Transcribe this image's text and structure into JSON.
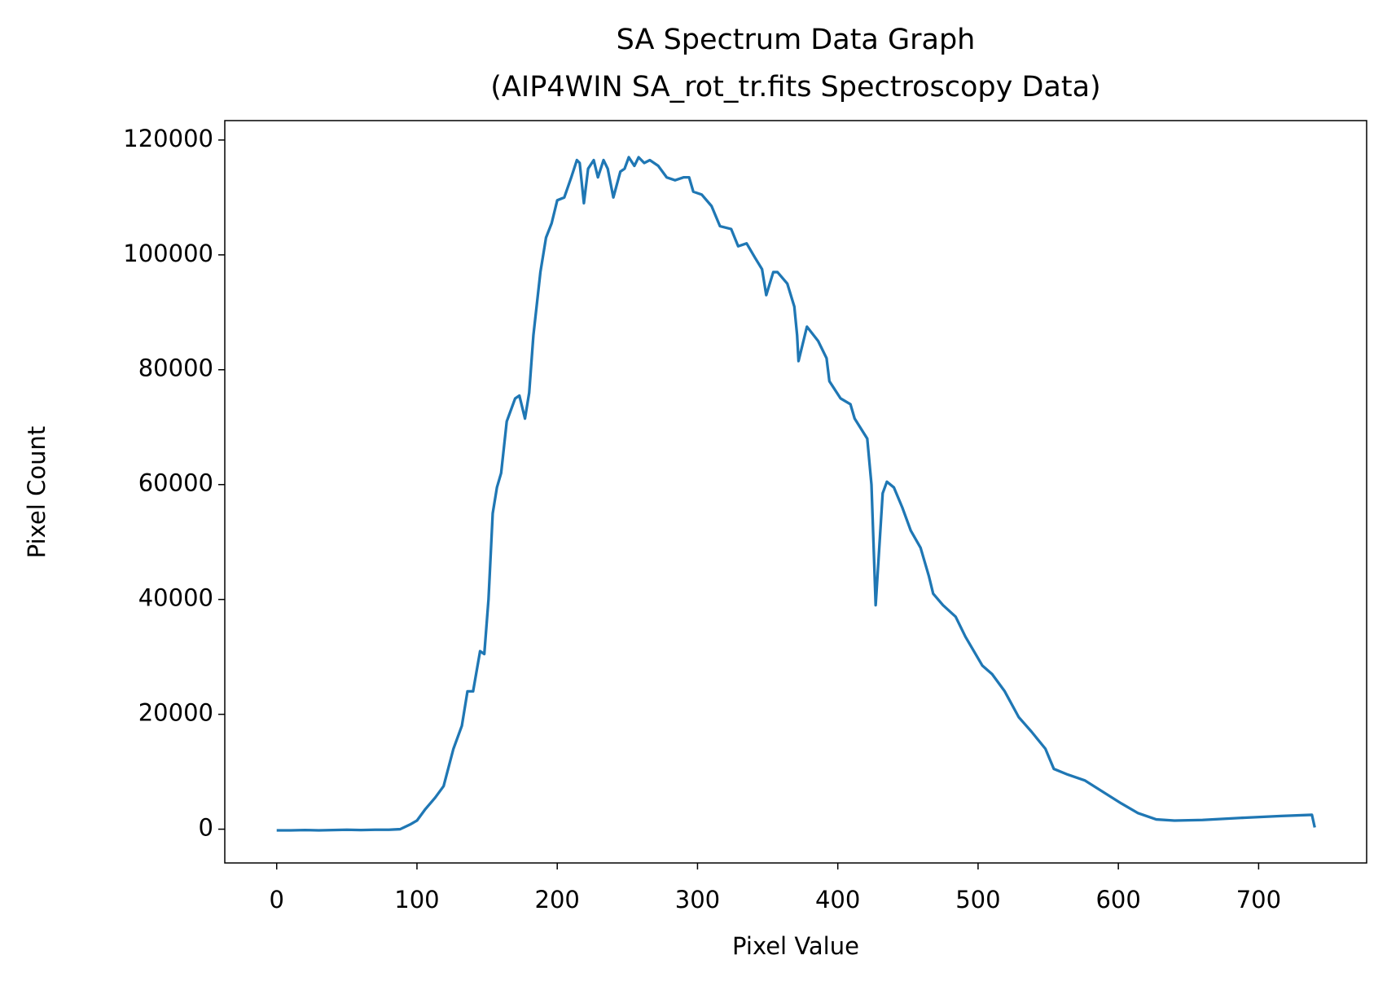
{
  "chart_data": {
    "type": "line",
    "title": "SA Spectrum Data Graph",
    "subtitle": "(AIP4WIN SA_rot_tr.fits Spectroscopy Data)",
    "x_label": "Pixel Value",
    "y_label": "Pixel Count",
    "x": [
      0,
      10,
      20,
      30,
      40,
      50,
      60,
      70,
      80,
      88,
      95,
      100,
      106,
      113,
      119,
      126,
      132,
      136,
      140,
      145,
      148,
      151,
      154,
      157,
      160,
      164,
      170,
      173,
      177,
      180,
      183,
      188,
      192,
      196,
      200,
      205,
      210,
      214,
      216,
      219,
      222,
      226,
      229,
      233,
      236,
      240,
      245,
      248,
      251,
      255,
      258,
      262,
      266,
      272,
      278,
      284,
      290,
      294,
      297,
      303,
      310,
      316,
      324,
      329,
      335,
      341,
      346,
      349,
      354,
      357,
      364,
      369,
      371,
      372,
      378,
      386,
      392,
      394,
      402,
      409,
      412,
      421,
      424,
      427,
      432,
      435,
      440,
      446,
      452,
      459,
      465,
      468,
      475,
      484,
      491,
      497,
      503,
      510,
      519,
      529,
      538,
      548,
      554,
      564,
      576,
      589,
      602,
      614,
      627,
      640,
      660,
      690,
      716,
      738,
      740
    ],
    "series": [
      {
        "name": "SA spectrum",
        "color": "#1f77b4",
        "values": [
          -200,
          -200,
          -150,
          -200,
          -150,
          -100,
          -150,
          -100,
          -100,
          0,
          800,
          1500,
          3500,
          5500,
          7500,
          14000,
          18000,
          24000,
          24000,
          31000,
          30500,
          40000,
          55000,
          59500,
          62000,
          71000,
          75000,
          75500,
          71500,
          76000,
          86000,
          97000,
          103000,
          105500,
          109500,
          110000,
          113500,
          116500,
          116000,
          109000,
          115000,
          116500,
          113500,
          116500,
          115000,
          110000,
          114500,
          115000,
          117000,
          115500,
          117000,
          116000,
          116500,
          115500,
          113500,
          113000,
          113500,
          113500,
          111000,
          110500,
          108500,
          105000,
          104500,
          101500,
          102000,
          99500,
          97500,
          93000,
          97000,
          97000,
          95000,
          91000,
          86000,
          81500,
          87500,
          85000,
          82000,
          78000,
          75000,
          74000,
          71500,
          68000,
          60000,
          39000,
          58500,
          60500,
          59500,
          56000,
          52000,
          49000,
          44000,
          41000,
          39000,
          37000,
          33500,
          31000,
          28500,
          27000,
          24000,
          19500,
          17000,
          14000,
          10500,
          9500,
          8500,
          6500,
          4500,
          2800,
          1700,
          1500,
          1600,
          2000,
          2300,
          2500,
          300
        ]
      }
    ],
    "xlim": [
      -37,
      777
    ],
    "ylim": [
      -5880,
      123380
    ],
    "xticks": [
      0,
      100,
      200,
      300,
      400,
      500,
      600,
      700
    ],
    "yticks": [
      0,
      20000,
      40000,
      60000,
      80000,
      100000,
      120000
    ],
    "grid": false
  }
}
